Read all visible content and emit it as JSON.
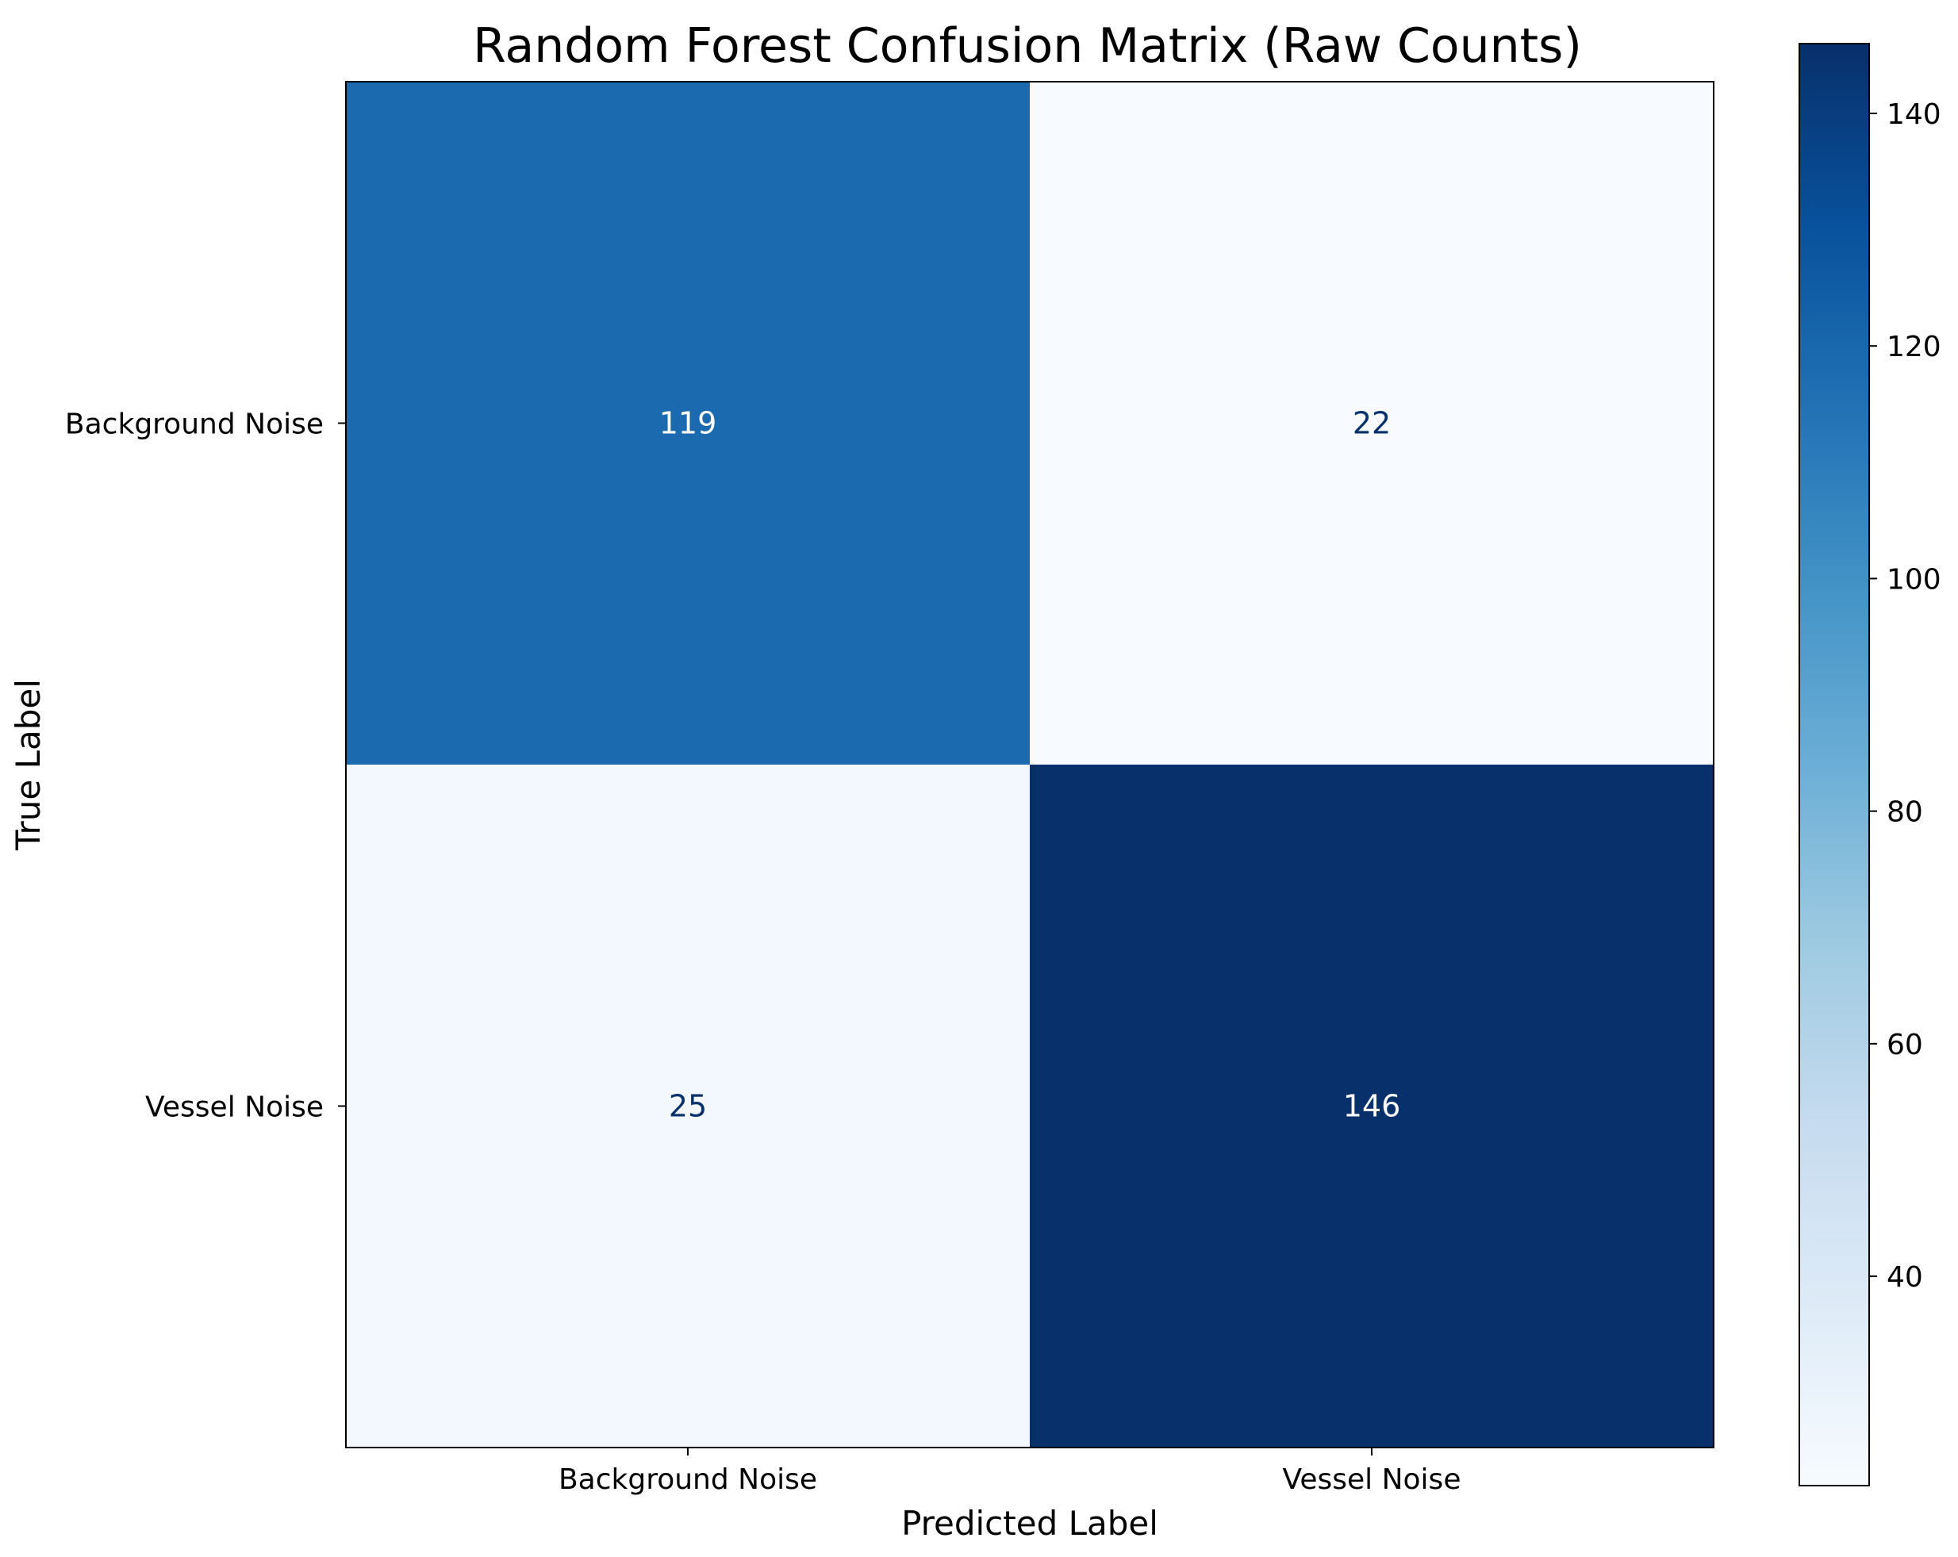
{
  "chart_data": {
    "type": "heatmap",
    "title": "Random Forest Confusion Matrix (Raw Counts)",
    "xlabel": "Predicted Label",
    "ylabel": "True Label",
    "x_categories": [
      "Background Noise",
      "Vessel Noise"
    ],
    "y_categories": [
      "Background Noise",
      "Vessel Noise"
    ],
    "values": [
      [
        119,
        22
      ],
      [
        25,
        146
      ]
    ],
    "colormap": "Blues",
    "colorbar": {
      "range": [
        22,
        146
      ],
      "ticks": [
        40,
        60,
        80,
        100,
        120,
        140
      ]
    },
    "grid": false
  }
}
